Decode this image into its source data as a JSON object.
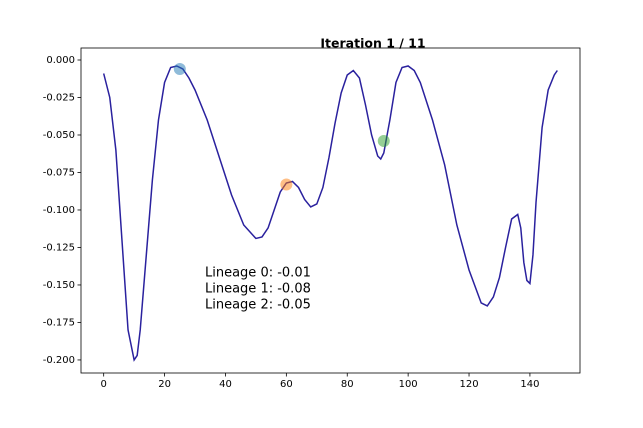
{
  "chart_data": {
    "type": "line",
    "title": "Iteration 1 / 11",
    "color": "#2a219e",
    "x": [
      0,
      2,
      4,
      6,
      8,
      10,
      11,
      12,
      14,
      16,
      18,
      20,
      22,
      24,
      26,
      28,
      30,
      34,
      38,
      42,
      46,
      50,
      52,
      54,
      56,
      58,
      60,
      62,
      64,
      66,
      68,
      70,
      72,
      74,
      76,
      78,
      80,
      82,
      84,
      86,
      88,
      90,
      91,
      92,
      94,
      96,
      98,
      100,
      102,
      104,
      108,
      112,
      116,
      120,
      124,
      126,
      128,
      130,
      132,
      134,
      136,
      137,
      138,
      139,
      140,
      141,
      142,
      144,
      146,
      148,
      149
    ],
    "values": [
      -0.009,
      -0.025,
      -0.06,
      -0.12,
      -0.18,
      -0.2,
      -0.197,
      -0.18,
      -0.13,
      -0.08,
      -0.04,
      -0.015,
      -0.005,
      -0.004,
      -0.006,
      -0.012,
      -0.02,
      -0.04,
      -0.065,
      -0.09,
      -0.11,
      -0.119,
      -0.118,
      -0.112,
      -0.1,
      -0.088,
      -0.082,
      -0.081,
      -0.085,
      -0.093,
      -0.098,
      -0.096,
      -0.085,
      -0.065,
      -0.042,
      -0.022,
      -0.01,
      -0.007,
      -0.012,
      -0.03,
      -0.05,
      -0.064,
      -0.066,
      -0.062,
      -0.04,
      -0.015,
      -0.005,
      -0.004,
      -0.007,
      -0.015,
      -0.04,
      -0.07,
      -0.11,
      -0.14,
      -0.162,
      -0.164,
      -0.158,
      -0.145,
      -0.125,
      -0.106,
      -0.103,
      -0.112,
      -0.135,
      -0.147,
      -0.149,
      -0.13,
      -0.095,
      -0.045,
      -0.02,
      -0.01,
      -0.007
    ],
    "points": {
      "x": [
        25,
        60,
        92
      ],
      "values": [
        -0.006,
        -0.083,
        -0.054
      ],
      "colors": [
        "#1f77b4",
        "#ff7f0e",
        "#2ca02c"
      ],
      "opacity": 0.5
    },
    "annotations": [
      "Lineage 0: -0.01",
      "Lineage 1: -0.08",
      "Lineage 2: -0.05"
    ],
    "xlim": [
      -7.45,
      156.45
    ],
    "ylim": [
      -0.2087,
      0.008
    ],
    "xticks": [
      0,
      20,
      40,
      60,
      80,
      100,
      120,
      140
    ],
    "yticks": [
      {
        "value": 0,
        "label": "0.000"
      },
      {
        "value": -0.025,
        "label": "-0.025"
      },
      {
        "value": -0.05,
        "label": "-0.050"
      },
      {
        "value": -0.075,
        "label": "-0.075"
      },
      {
        "value": -0.1,
        "label": "-0.100"
      },
      {
        "value": -0.125,
        "label": "-0.125"
      },
      {
        "value": -0.15,
        "label": "-0.150"
      },
      {
        "value": -0.175,
        "label": "-0.175"
      },
      {
        "value": -0.2,
        "label": "-0.200"
      }
    ],
    "grid": false
  }
}
